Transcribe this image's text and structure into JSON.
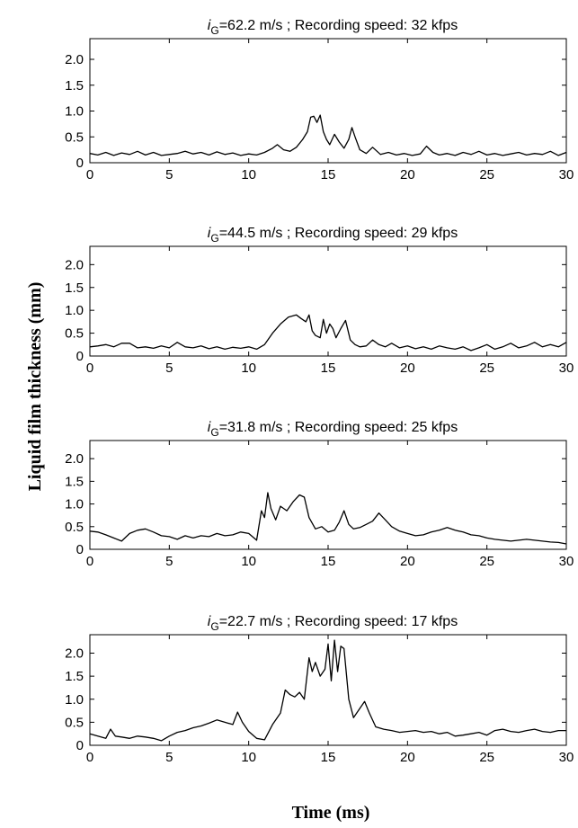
{
  "figure": {
    "ylabel": "Liquid film thickness (mm)",
    "xlabel": "Time (ms)"
  },
  "chart_data": [
    {
      "type": "line",
      "title_var": "i",
      "title_sub": "G",
      "title_rest": "=62.2 m/s ;   Recording speed: 32 kfps",
      "xlim": [
        0,
        30
      ],
      "ylim": [
        0,
        2.4
      ],
      "xticks": [
        "0",
        "5",
        "10",
        "15",
        "20",
        "25",
        "30"
      ],
      "yticks": [
        "0",
        "0.5",
        "1.0",
        "1.5",
        "2.0"
      ],
      "series": [
        {
          "x": [
            0,
            0.5,
            1,
            1.5,
            2,
            2.5,
            3,
            3.5,
            4,
            4.5,
            5,
            5.5,
            6,
            6.5,
            7,
            7.5,
            8,
            8.5,
            9,
            9.5,
            10,
            10.5,
            11,
            11.5,
            11.8,
            12.2,
            12.6,
            13,
            13.4,
            13.7,
            13.9,
            14.1,
            14.3,
            14.5,
            14.7,
            14.9,
            15.1,
            15.4,
            15.7,
            16,
            16.3,
            16.5,
            16.7,
            17,
            17.4,
            17.8,
            18.3,
            18.8,
            19.3,
            19.8,
            20.3,
            20.8,
            21.2,
            21.6,
            22,
            22.5,
            23,
            23.5,
            24,
            24.5,
            25,
            25.5,
            26,
            26.5,
            27,
            27.5,
            28,
            28.5,
            29,
            29.5,
            30
          ],
          "y": [
            0.18,
            0.15,
            0.2,
            0.14,
            0.19,
            0.16,
            0.22,
            0.15,
            0.2,
            0.14,
            0.16,
            0.18,
            0.22,
            0.17,
            0.2,
            0.15,
            0.21,
            0.16,
            0.19,
            0.14,
            0.17,
            0.15,
            0.2,
            0.28,
            0.35,
            0.25,
            0.22,
            0.3,
            0.45,
            0.6,
            0.88,
            0.9,
            0.78,
            0.92,
            0.6,
            0.45,
            0.35,
            0.55,
            0.4,
            0.28,
            0.45,
            0.68,
            0.5,
            0.25,
            0.18,
            0.3,
            0.16,
            0.2,
            0.15,
            0.18,
            0.14,
            0.17,
            0.32,
            0.2,
            0.15,
            0.18,
            0.14,
            0.2,
            0.16,
            0.22,
            0.15,
            0.18,
            0.14,
            0.17,
            0.2,
            0.15,
            0.18,
            0.16,
            0.22,
            0.14,
            0.2
          ]
        }
      ]
    },
    {
      "type": "line",
      "title_var": "i",
      "title_sub": "G",
      "title_rest": "=44.5  m/s ;   Recording speed: 29 kfps",
      "xlim": [
        0,
        30
      ],
      "ylim": [
        0,
        2.4
      ],
      "xticks": [
        "0",
        "5",
        "10",
        "15",
        "20",
        "25",
        "30"
      ],
      "yticks": [
        "0",
        "0.5",
        "1.0",
        "1.5",
        "2.0"
      ],
      "series": [
        {
          "x": [
            0,
            0.5,
            1,
            1.5,
            2,
            2.5,
            3,
            3.5,
            4,
            4.5,
            5,
            5.5,
            6,
            6.5,
            7,
            7.5,
            8,
            8.5,
            9,
            9.5,
            10,
            10.5,
            11,
            11.5,
            12,
            12.5,
            13,
            13.3,
            13.6,
            13.8,
            14,
            14.2,
            14.5,
            14.7,
            14.9,
            15.1,
            15.3,
            15.5,
            15.8,
            16.1,
            16.4,
            16.7,
            17,
            17.4,
            17.8,
            18.2,
            18.6,
            19,
            19.5,
            20,
            20.5,
            21,
            21.5,
            22,
            22.5,
            23,
            23.5,
            24,
            24.5,
            25,
            25.5,
            26,
            26.5,
            27,
            27.5,
            28,
            28.5,
            29,
            29.5,
            30
          ],
          "y": [
            0.2,
            0.22,
            0.25,
            0.2,
            0.28,
            0.28,
            0.18,
            0.2,
            0.17,
            0.22,
            0.18,
            0.3,
            0.2,
            0.18,
            0.22,
            0.16,
            0.2,
            0.15,
            0.19,
            0.17,
            0.2,
            0.15,
            0.25,
            0.5,
            0.7,
            0.85,
            0.9,
            0.82,
            0.75,
            0.9,
            0.55,
            0.45,
            0.4,
            0.8,
            0.5,
            0.7,
            0.6,
            0.4,
            0.6,
            0.78,
            0.35,
            0.25,
            0.2,
            0.22,
            0.35,
            0.25,
            0.2,
            0.28,
            0.18,
            0.22,
            0.16,
            0.2,
            0.15,
            0.22,
            0.18,
            0.15,
            0.2,
            0.12,
            0.18,
            0.25,
            0.15,
            0.2,
            0.28,
            0.18,
            0.22,
            0.3,
            0.2,
            0.25,
            0.2,
            0.3
          ]
        }
      ]
    },
    {
      "type": "line",
      "title_var": "i",
      "title_sub": "G",
      "title_rest": "=31.8 m/s ;   Recording speed: 25 kfps",
      "xlim": [
        0,
        30
      ],
      "ylim": [
        0,
        2.4
      ],
      "xticks": [
        "0",
        "5",
        "10",
        "15",
        "20",
        "25",
        "30"
      ],
      "yticks": [
        "0",
        "0.5",
        "1.0",
        "1.5",
        "2.0"
      ],
      "series": [
        {
          "x": [
            0,
            0.5,
            1,
            1.5,
            2,
            2.5,
            3,
            3.5,
            4,
            4.5,
            5,
            5.5,
            6,
            6.5,
            7,
            7.5,
            8,
            8.5,
            9,
            9.5,
            10,
            10.5,
            10.8,
            11,
            11.2,
            11.4,
            11.7,
            12,
            12.4,
            12.8,
            13.2,
            13.5,
            13.8,
            14.2,
            14.6,
            15,
            15.4,
            15.7,
            16,
            16.3,
            16.6,
            17,
            17.4,
            17.8,
            18.2,
            18.6,
            19,
            19.5,
            20,
            20.5,
            21,
            21.5,
            22,
            22.5,
            23,
            23.5,
            24,
            24.5,
            25,
            25.5,
            26,
            26.5,
            27,
            27.5,
            28,
            28.5,
            29,
            29.5,
            30
          ],
          "y": [
            0.4,
            0.38,
            0.32,
            0.25,
            0.18,
            0.35,
            0.42,
            0.45,
            0.38,
            0.3,
            0.28,
            0.22,
            0.3,
            0.25,
            0.3,
            0.28,
            0.35,
            0.3,
            0.32,
            0.38,
            0.35,
            0.2,
            0.85,
            0.7,
            1.25,
            0.9,
            0.65,
            0.95,
            0.85,
            1.05,
            1.2,
            1.15,
            0.7,
            0.45,
            0.5,
            0.38,
            0.42,
            0.6,
            0.85,
            0.55,
            0.45,
            0.48,
            0.55,
            0.62,
            0.8,
            0.65,
            0.5,
            0.4,
            0.35,
            0.3,
            0.32,
            0.38,
            0.42,
            0.48,
            0.42,
            0.38,
            0.32,
            0.3,
            0.25,
            0.22,
            0.2,
            0.18,
            0.2,
            0.22,
            0.2,
            0.18,
            0.16,
            0.15,
            0.12
          ]
        }
      ]
    },
    {
      "type": "line",
      "title_var": "i",
      "title_sub": "G",
      "title_rest": "=22.7 m/s ;   Recording speed: 17 kfps",
      "xlim": [
        0,
        30
      ],
      "ylim": [
        0,
        2.4
      ],
      "xticks": [
        "0",
        "5",
        "10",
        "15",
        "20",
        "25",
        "30"
      ],
      "yticks": [
        "0",
        "0.5",
        "1.0",
        "1.5",
        "2.0"
      ],
      "series": [
        {
          "x": [
            0,
            0.5,
            1,
            1.3,
            1.6,
            2,
            2.5,
            3,
            3.5,
            4,
            4.5,
            5,
            5.5,
            6,
            6.5,
            7,
            7.5,
            8,
            8.5,
            9,
            9.3,
            9.6,
            10,
            10.5,
            11,
            11.5,
            12,
            12.3,
            12.6,
            12.9,
            13.2,
            13.5,
            13.8,
            14,
            14.2,
            14.5,
            14.8,
            15,
            15.2,
            15.4,
            15.6,
            15.8,
            16,
            16.3,
            16.6,
            17,
            17.3,
            17.6,
            18,
            18.5,
            19,
            19.5,
            20,
            20.5,
            21,
            21.5,
            22,
            22.5,
            23,
            23.5,
            24,
            24.5,
            25,
            25.5,
            26,
            26.5,
            27,
            27.5,
            28,
            28.5,
            29,
            29.5,
            30
          ],
          "y": [
            0.25,
            0.2,
            0.15,
            0.35,
            0.2,
            0.18,
            0.15,
            0.2,
            0.18,
            0.15,
            0.1,
            0.2,
            0.28,
            0.32,
            0.38,
            0.42,
            0.48,
            0.55,
            0.5,
            0.45,
            0.72,
            0.5,
            0.3,
            0.15,
            0.12,
            0.45,
            0.7,
            1.2,
            1.1,
            1.05,
            1.15,
            1.0,
            1.9,
            1.6,
            1.8,
            1.5,
            1.65,
            2.2,
            1.4,
            2.28,
            1.6,
            2.15,
            2.1,
            1.0,
            0.6,
            0.8,
            0.95,
            0.7,
            0.4,
            0.35,
            0.32,
            0.28,
            0.3,
            0.32,
            0.28,
            0.3,
            0.25,
            0.28,
            0.2,
            0.22,
            0.25,
            0.28,
            0.22,
            0.32,
            0.35,
            0.3,
            0.28,
            0.32,
            0.35,
            0.3,
            0.28,
            0.32,
            0.32
          ]
        }
      ]
    }
  ]
}
